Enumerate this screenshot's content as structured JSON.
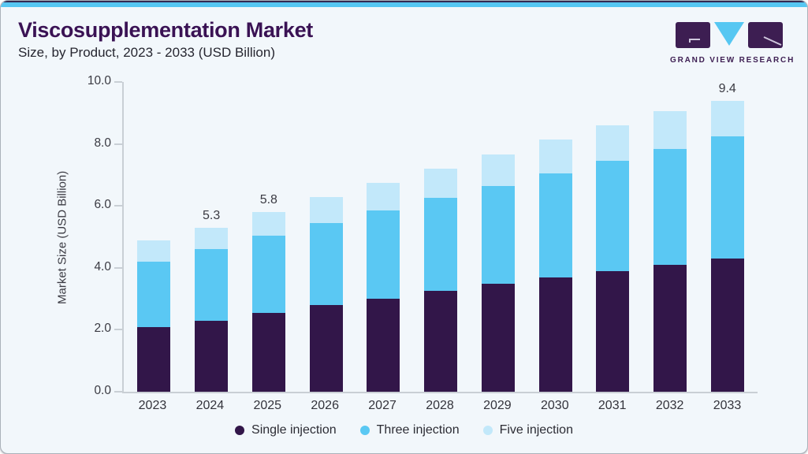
{
  "header": {
    "title": "Viscosupplementation Market",
    "subtitle": "Size, by Product, 2023 - 2033 (USD Billion)",
    "logo_text": "GRAND VIEW RESEARCH"
  },
  "colors": {
    "accent_blue": "#56c7f2",
    "title_purple": "#3a1254",
    "logo_purple": "#3d1e52",
    "card_background": "#f2f7fb"
  },
  "chart_data": {
    "type": "bar",
    "stacked": true,
    "title": "Viscosupplementation Market Size, by Product, 2023 - 2033 (USD Billion)",
    "categories": [
      "2023",
      "2024",
      "2025",
      "2026",
      "2027",
      "2028",
      "2029",
      "2030",
      "2031",
      "2032",
      "2033"
    ],
    "series": [
      {
        "name": "Single injection",
        "color": "#321649",
        "values": [
          2.1,
          2.3,
          2.55,
          2.8,
          3.0,
          3.25,
          3.5,
          3.7,
          3.9,
          4.1,
          4.3
        ]
      },
      {
        "name": "Three injection",
        "color": "#5ac8f3",
        "values": [
          2.1,
          2.3,
          2.5,
          2.65,
          2.85,
          3.0,
          3.15,
          3.35,
          3.55,
          3.75,
          3.95
        ]
      },
      {
        "name": "Five injection",
        "color": "#c2e8fa",
        "values": [
          0.7,
          0.7,
          0.75,
          0.85,
          0.9,
          0.95,
          1.0,
          1.1,
          1.15,
          1.2,
          1.15
        ]
      }
    ],
    "bar_labels": [
      "",
      "5.3",
      "5.8",
      "",
      "",
      "",
      "",
      "",
      "",
      "",
      "9.4"
    ],
    "xlabel": "",
    "ylabel": "Market Size (USD Billion)",
    "ylim": [
      0,
      10
    ],
    "yticks": [
      "0.0",
      "2.0",
      "4.0",
      "6.0",
      "8.0",
      "10.0"
    ],
    "grid": false,
    "legend_position": "bottom"
  }
}
